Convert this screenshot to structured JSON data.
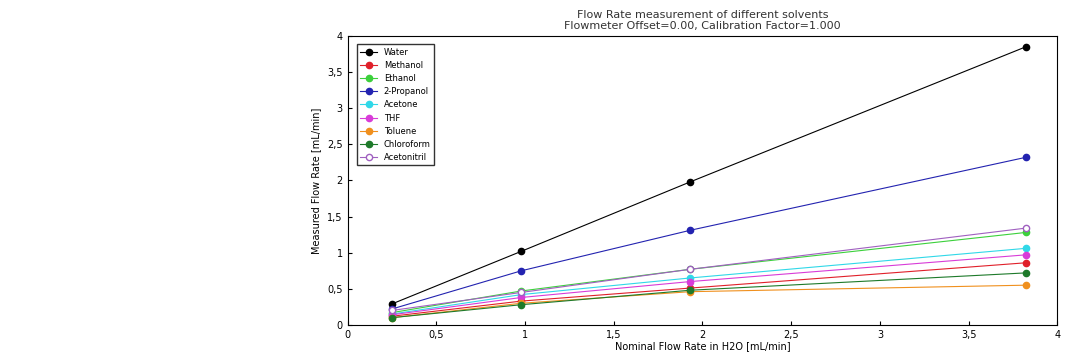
{
  "chart_data": {
    "type": "line",
    "title": "Flow Rate measurement of different solvents\nFlowmeter Offset=0.00, Calibration Factor=1.000",
    "x_label": "Nominal Flow Rate in H2O [mL/min]",
    "y_label": "Measured Flow Rate [mL/min]",
    "x": [
      0.25,
      0.98,
      1.93,
      3.82
    ],
    "series": [
      {
        "name": "Water",
        "color": "#000000",
        "marker": "circle",
        "values": [
          0.29,
          1.02,
          1.98,
          3.85
        ]
      },
      {
        "name": "Methanol",
        "color": "#e0202a",
        "marker": "circle",
        "values": [
          0.12,
          0.33,
          0.51,
          0.86
        ]
      },
      {
        "name": "Ethanol",
        "color": "#3cd03c",
        "marker": "circle",
        "values": [
          0.17,
          0.47,
          0.77,
          1.28
        ]
      },
      {
        "name": "2-Propanol",
        "color": "#2323b0",
        "marker": "circle",
        "values": [
          0.22,
          0.75,
          1.31,
          2.32
        ]
      },
      {
        "name": "Acetone",
        "color": "#30d8e8",
        "marker": "circle",
        "values": [
          0.15,
          0.42,
          0.65,
          1.06
        ]
      },
      {
        "name": "THF",
        "color": "#d83cd8",
        "marker": "circle",
        "values": [
          0.14,
          0.38,
          0.6,
          0.97
        ]
      },
      {
        "name": "Toluene",
        "color": "#f0901e",
        "marker": "circle",
        "values": [
          0.1,
          0.3,
          0.46,
          0.55
        ]
      },
      {
        "name": "Chloroform",
        "color": "#1e7a2a",
        "marker": "circle",
        "values": [
          0.1,
          0.28,
          0.48,
          0.72
        ]
      },
      {
        "name": "Acetonitril",
        "color": "#a060c0",
        "marker": "open_circle",
        "values": [
          0.2,
          0.45,
          0.77,
          1.34
        ]
      }
    ],
    "xlim": [
      0,
      4
    ],
    "ylim": [
      0,
      4
    ],
    "xticks": [
      0,
      {
        "value": 0.5,
        "label": "0,5"
      },
      1,
      {
        "value": 1.5,
        "label": "1,5"
      },
      2,
      {
        "value": 2.5,
        "label": "2,5"
      },
      3,
      {
        "value": 3.5,
        "label": "3,5"
      },
      4
    ],
    "yticks": [
      0,
      {
        "value": 0.5,
        "label": "0,5"
      },
      1,
      {
        "value": 1.5,
        "label": "1,5"
      },
      2,
      {
        "value": 2.5,
        "label": "2,5"
      },
      3,
      {
        "value": 3.5,
        "label": "3,5"
      },
      4
    ],
    "legend": "upper left",
    "grid": false
  }
}
